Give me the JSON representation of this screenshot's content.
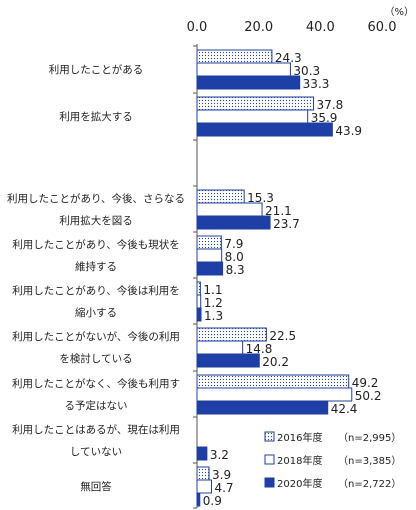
{
  "chart_data": {
    "type": "bar",
    "orientation": "horizontal",
    "unit": "（%）",
    "xlim": [
      0,
      60
    ],
    "ticks": [
      "0.0",
      "20.0",
      "40.0",
      "60.0"
    ],
    "tick_values": [
      0,
      20,
      40,
      60
    ],
    "categories": [
      [
        "利用したことがある"
      ],
      [
        "利用を拡大する"
      ],
      [
        ""
      ],
      [
        "利用したことがあり、今後、さらなる",
        "利用拡大を図る"
      ],
      [
        "利用したことがあり、今後も現状を",
        "維持する"
      ],
      [
        "利用したことがあり、今後は利用を",
        "縮小する"
      ],
      [
        "利用したことがないが、今後の利用",
        "を検討している"
      ],
      [
        "利用したことがなく、今後も利用す",
        "る予定はない"
      ],
      [
        "利用したことはあるが、現在は利用",
        "していない"
      ],
      [
        "無回答"
      ]
    ],
    "series": [
      {
        "name": "2016年度",
        "n": "（n=2,995）",
        "pattern": "dots",
        "color": "#1f3f9f",
        "values": [
          24.3,
          37.8,
          null,
          15.3,
          7.9,
          1.1,
          22.5,
          49.2,
          null,
          3.9
        ]
      },
      {
        "name": "2018年度",
        "n": "（n=3,385）",
        "pattern": "plain",
        "color": "#1f3f9f",
        "values": [
          30.3,
          35.9,
          null,
          21.1,
          8.0,
          1.2,
          14.8,
          50.2,
          null,
          4.7
        ]
      },
      {
        "name": "2020年度",
        "n": "（n=2,722）",
        "pattern": "solid",
        "color": "#1e3fa6",
        "values": [
          33.3,
          43.9,
          null,
          23.7,
          8.3,
          1.3,
          20.2,
          42.4,
          3.2,
          0.9
        ]
      }
    ],
    "value_labels": [
      [
        "24.3",
        "37.8",
        null,
        "15.3",
        "7.9",
        "1.1",
        "22.5",
        "49.2",
        null,
        "3.9"
      ],
      [
        "30.3",
        "35.9",
        null,
        "21.1",
        "8.0",
        "1.2",
        "14.8",
        "50.2",
        null,
        "4.7"
      ],
      [
        "33.3",
        "43.9",
        null,
        "23.7",
        "8.3",
        "1.3",
        "20.2",
        "42.4",
        "3.2",
        "0.9"
      ]
    ],
    "legend_position": "bottom-right",
    "grid": false
  }
}
